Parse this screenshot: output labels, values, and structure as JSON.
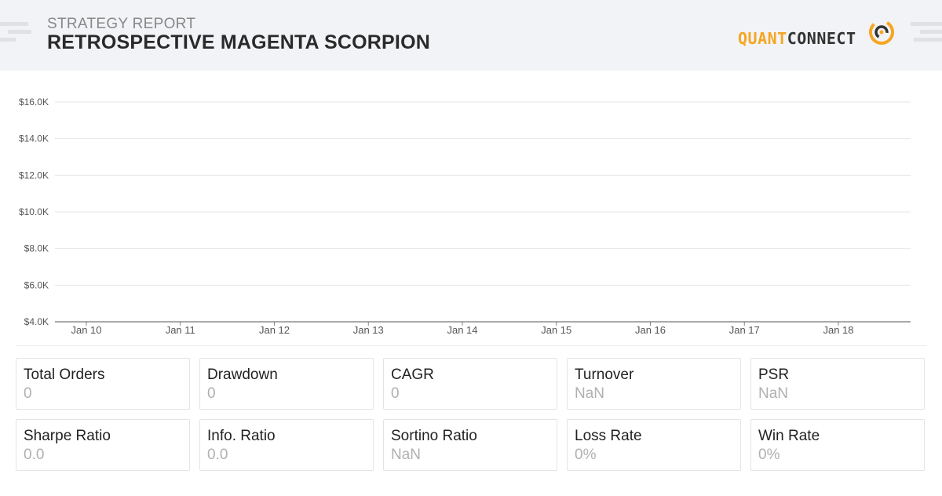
{
  "header": {
    "subtitle": "STRATEGY REPORT",
    "title": "RETROSPECTIVE MAGENTA SCORPION",
    "logo_quant": "QUANT",
    "logo_connect": "CONNECT",
    "colors": {
      "accent": "#f5a623",
      "header_bg": "#f2f3f6",
      "dark": "#333333"
    }
  },
  "chart_data": {
    "type": "line",
    "title": "",
    "xlabel": "",
    "ylabel": "",
    "x_ticks": [
      "Jan 10",
      "Jan 11",
      "Jan 12",
      "Jan 13",
      "Jan 14",
      "Jan 15",
      "Jan 16",
      "Jan 17",
      "Jan 18"
    ],
    "y_ticks": [
      "$16.0K",
      "$14.0K",
      "$12.0K",
      "$10.0K",
      "$8.0K",
      "$6.0K",
      "$4.0K"
    ],
    "ylim": [
      4000,
      16000
    ],
    "series": [],
    "grid": true,
    "legend": "none"
  },
  "stats": [
    {
      "label": "Total Orders",
      "value": "0"
    },
    {
      "label": "Drawdown",
      "value": "0"
    },
    {
      "label": "CAGR",
      "value": "0"
    },
    {
      "label": "Turnover",
      "value": "NaN"
    },
    {
      "label": "PSR",
      "value": "NaN"
    },
    {
      "label": "Sharpe Ratio",
      "value": "0.0"
    },
    {
      "label": "Info. Ratio",
      "value": "0.0"
    },
    {
      "label": "Sortino Ratio",
      "value": "NaN"
    },
    {
      "label": "Loss Rate",
      "value": "0%"
    },
    {
      "label": "Win Rate",
      "value": "0%"
    }
  ]
}
